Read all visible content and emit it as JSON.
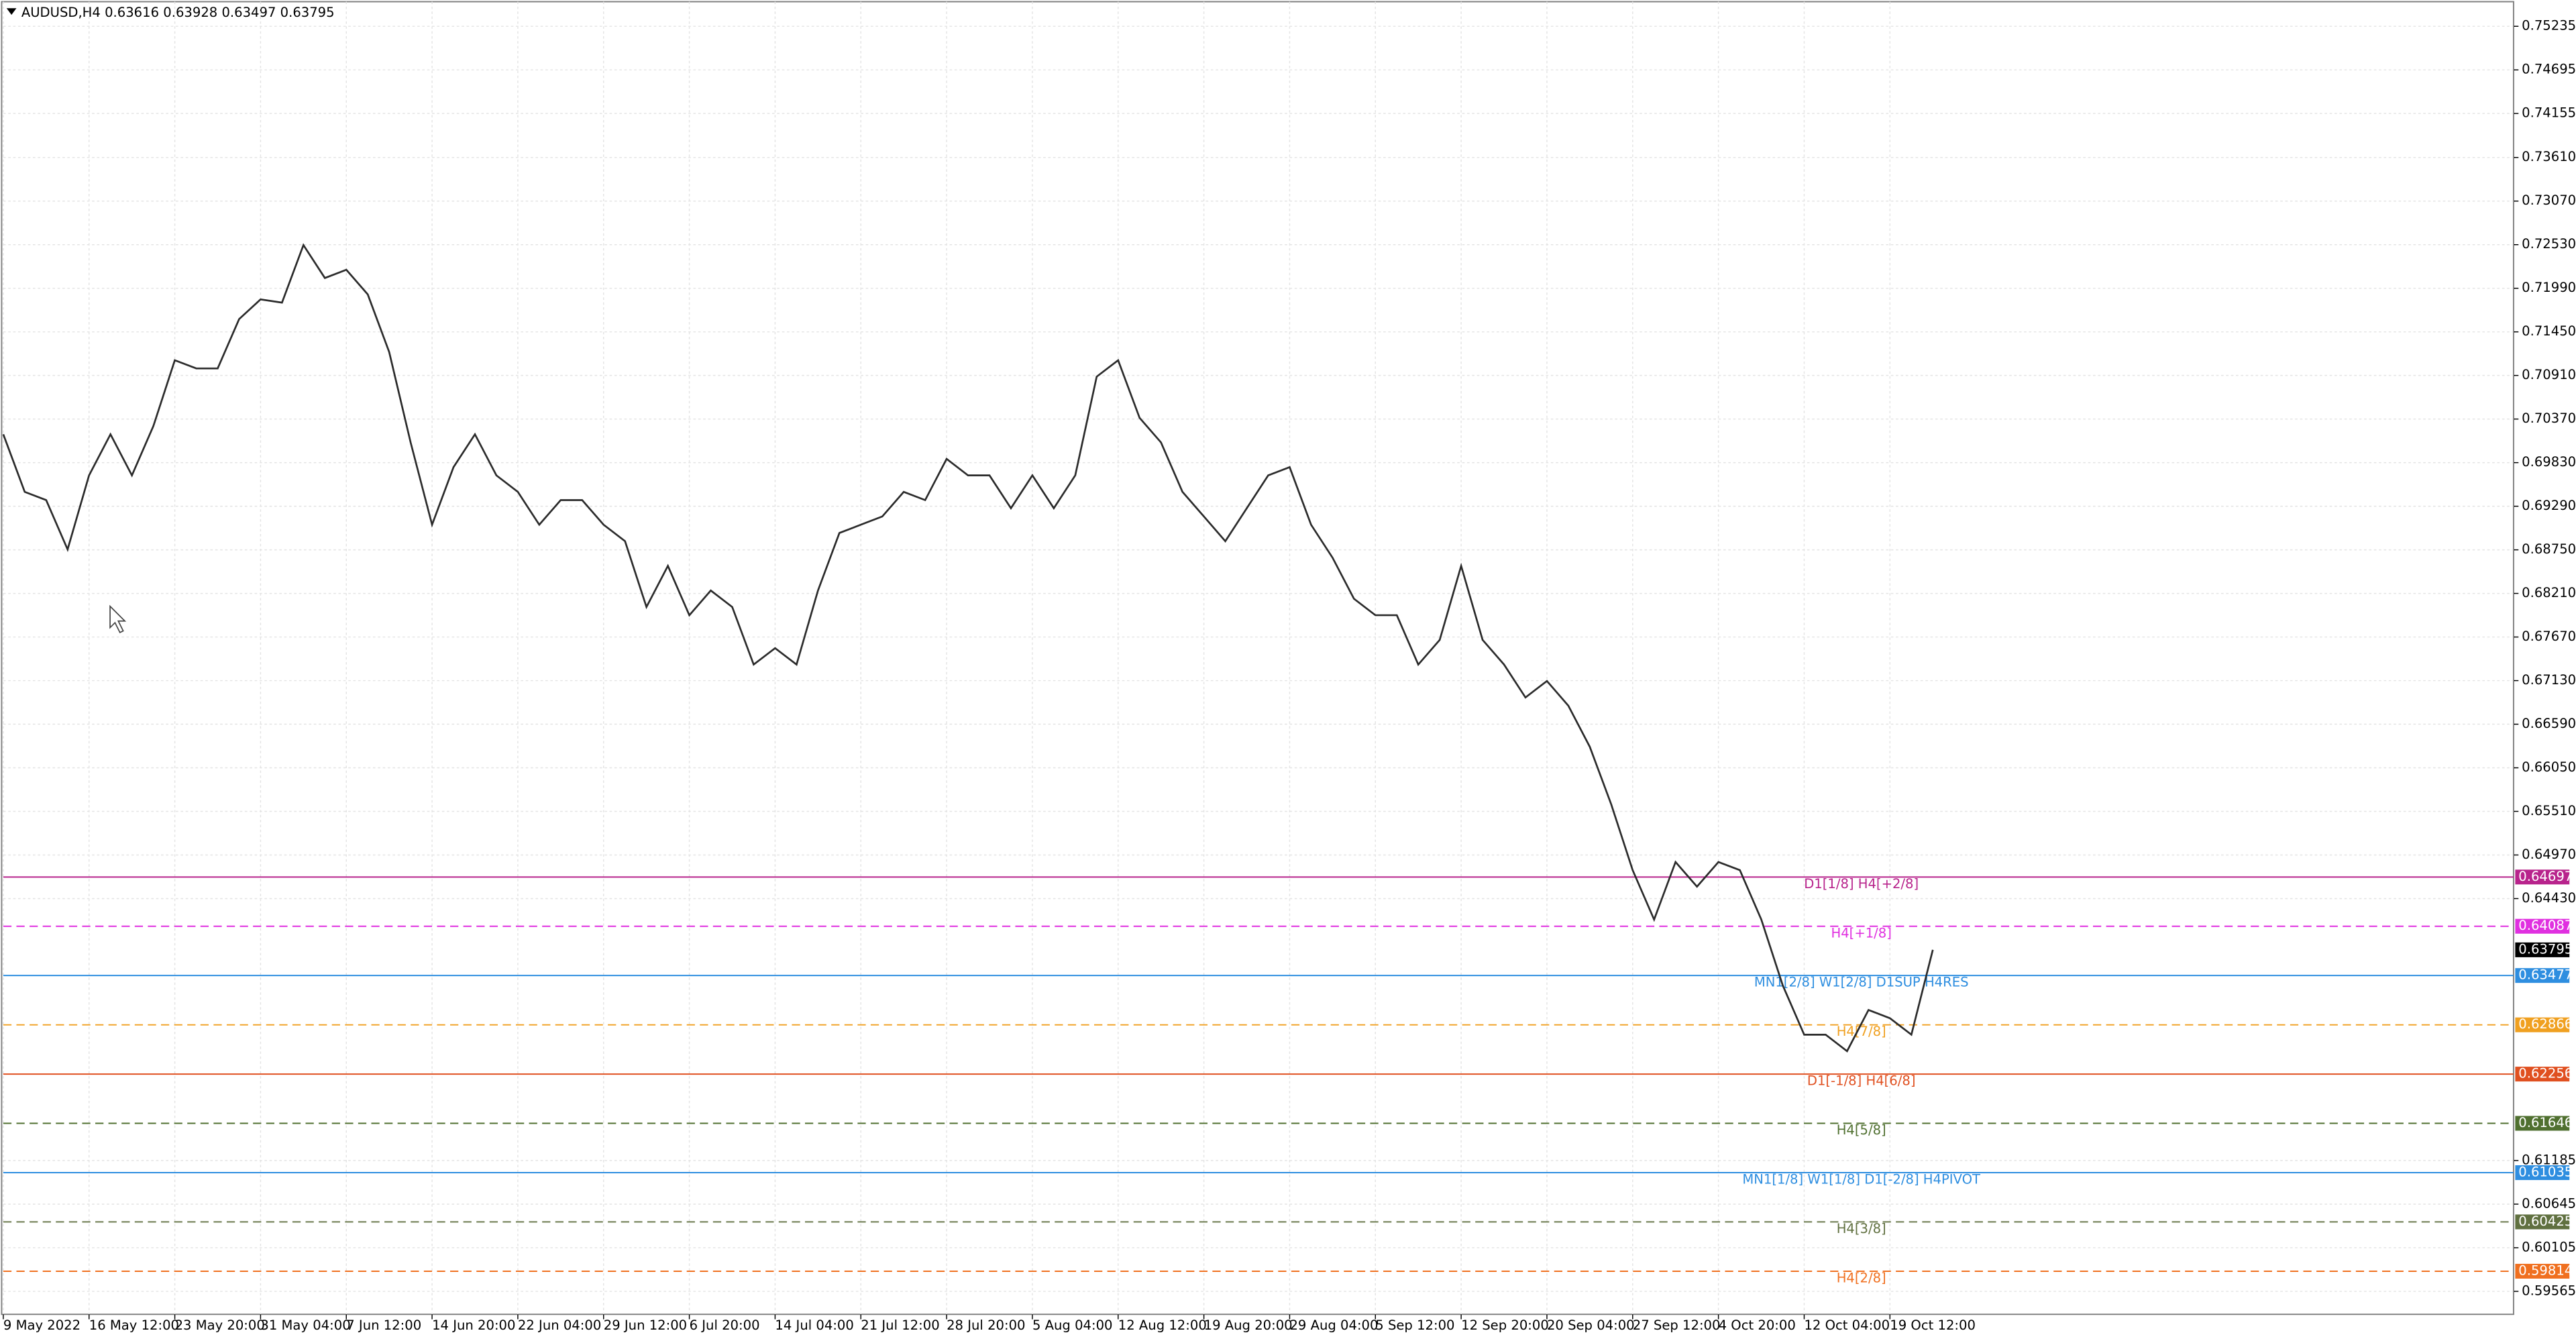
{
  "chart_data": {
    "type": "line",
    "title": "AUDUSD,H4  0.63616 0.63928 0.63497 0.63795",
    "categories": [
      "9 May 2022",
      null,
      null,
      null,
      "16 May 12:00",
      null,
      null,
      null,
      "23 May 20:00",
      null,
      null,
      null,
      "31 May 04:00",
      null,
      null,
      null,
      "7 Jun 12:00",
      null,
      null,
      null,
      "14 Jun 20:00",
      null,
      null,
      null,
      "22 Jun 04:00",
      null,
      null,
      null,
      "29 Jun 12:00",
      null,
      null,
      null,
      "6 Jul 20:00",
      null,
      null,
      null,
      "14 Jul 04:00",
      null,
      null,
      null,
      "21 Jul 12:00",
      null,
      null,
      null,
      "28 Jul 20:00",
      null,
      null,
      null,
      "5 Aug 04:00",
      null,
      null,
      null,
      "12 Aug 12:00",
      null,
      null,
      null,
      "19 Aug 20:00",
      null,
      null,
      null,
      "29 Aug 04:00",
      null,
      null,
      null,
      "5 Sep 12:00",
      null,
      null,
      null,
      "12 Sep 20:00",
      null,
      null,
      null,
      "20 Sep 04:00",
      null,
      null,
      null,
      "27 Sep 12:00",
      null,
      null,
      null,
      "4 Oct 20:00",
      null,
      null,
      null,
      "12 Oct 04:00",
      null,
      null,
      null,
      "19 Oct 12:00",
      null,
      null
    ],
    "series": [
      {
        "name": "AUDUSD,H4",
        "color": "#2b2b2b",
        "values": [
          0.70181,
          0.69468,
          0.69366,
          0.68755,
          0.69672,
          0.70181,
          0.69672,
          0.70283,
          0.71098,
          0.70997,
          0.70997,
          0.71608,
          0.71852,
          0.71812,
          0.72525,
          0.72117,
          0.72219,
          0.71914,
          0.712,
          0.7008,
          0.69061,
          0.69774,
          0.70181,
          0.69672,
          0.69468,
          0.69061,
          0.69366,
          0.69366,
          0.69061,
          0.68857,
          0.68042,
          0.68551,
          0.6794,
          0.68246,
          0.68042,
          0.67329,
          0.67532,
          0.67329,
          0.68246,
          0.68959,
          0.69061,
          0.69163,
          0.69468,
          0.69366,
          0.69876,
          0.69672,
          0.69672,
          0.69265,
          0.69672,
          0.69265,
          0.69672,
          0.70895,
          0.71098,
          0.70385,
          0.7008,
          0.69468,
          0.69163,
          0.68857,
          0.69265,
          0.69672,
          0.69774,
          0.69061,
          0.68653,
          0.68144,
          0.6794,
          0.6794,
          0.67329,
          0.67634,
          0.68551,
          0.67634,
          0.67329,
          0.66921,
          0.67125,
          0.66819,
          0.6631,
          0.65597,
          0.64782,
          0.6417,
          0.64883,
          0.64578,
          0.64883,
          0.64782,
          0.6417,
          0.63355,
          0.62744,
          0.62744,
          0.6254,
          0.6305,
          0.62948,
          0.62744,
          0.63795
        ]
      }
    ],
    "ylim": [
      0.5928,
      0.7554
    ],
    "yticks": [
      {
        "value": 0.75235,
        "label": "0.75235"
      },
      {
        "value": 0.74695,
        "label": "0.74695"
      },
      {
        "value": 0.74155,
        "label": "0.74155"
      },
      {
        "value": 0.7361,
        "label": "0.73610"
      },
      {
        "value": 0.7307,
        "label": "0.73070"
      },
      {
        "value": 0.7253,
        "label": "0.72530"
      },
      {
        "value": 0.7199,
        "label": "0.71990"
      },
      {
        "value": 0.7145,
        "label": "0.71450"
      },
      {
        "value": 0.7091,
        "label": "0.70910"
      },
      {
        "value": 0.7037,
        "label": "0.70370"
      },
      {
        "value": 0.6983,
        "label": "0.69830"
      },
      {
        "value": 0.6929,
        "label": "0.69290"
      },
      {
        "value": 0.6875,
        "label": "0.68750"
      },
      {
        "value": 0.6821,
        "label": "0.68210"
      },
      {
        "value": 0.6767,
        "label": "0.67670"
      },
      {
        "value": 0.6713,
        "label": "0.67130"
      },
      {
        "value": 0.6659,
        "label": "0.66590"
      },
      {
        "value": 0.6605,
        "label": "0.66050"
      },
      {
        "value": 0.6551,
        "label": "0.65510"
      },
      {
        "value": 0.6497,
        "label": "0.64970"
      },
      {
        "value": 0.6443,
        "label": "0.64430"
      },
      {
        "value": 0.61185,
        "label": "0.61185"
      },
      {
        "value": 0.60645,
        "label": "0.60645"
      },
      {
        "value": 0.60105,
        "label": "0.60105"
      },
      {
        "value": 0.59565,
        "label": "0.59565"
      }
    ],
    "grid": true,
    "last_price": 0.63795,
    "levels": [
      {
        "value": 0.64697,
        "label": "D1[1/8] H4[+2/8]",
        "color": "#b8248c",
        "style": "solid"
      },
      {
        "value": 0.64087,
        "label": "H4[+1/8]",
        "color": "#e030e0",
        "style": "dashed"
      },
      {
        "value": 0.63477,
        "label": "MN1[2/8] W1[2/8] D1SUP H4RES",
        "color": "#2e8ee0",
        "style": "solid"
      },
      {
        "value": 0.62866,
        "label": "H4[7/8]",
        "color": "#f0a020",
        "style": "dashed"
      },
      {
        "value": 0.62256,
        "label": "D1[-1/8] H4[6/8]",
        "color": "#e05020",
        "style": "solid"
      },
      {
        "value": 0.61646,
        "label": "H4[5/8]",
        "color": "#507030",
        "style": "dashed"
      },
      {
        "value": 0.61035,
        "label": "MN1[1/8] W1[1/8] D1[-2/8] H4PIVOT",
        "color": "#2e8ee0",
        "style": "solid"
      },
      {
        "value": 0.60425,
        "label": "H4[3/8]",
        "color": "#607040",
        "style": "dashed"
      },
      {
        "value": 0.59814,
        "label": "H4[2/8]",
        "color": "#f07020",
        "style": "dashed"
      }
    ]
  }
}
